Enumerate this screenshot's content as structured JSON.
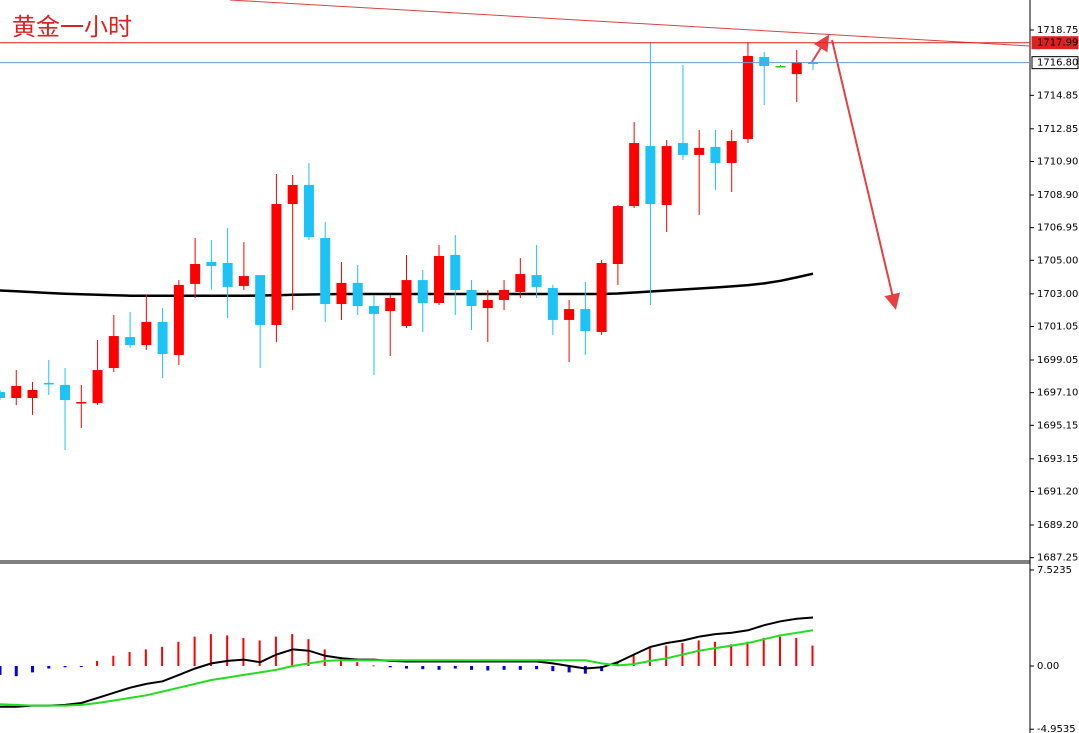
{
  "chart_data": [
    {
      "type": "candlestick",
      "title": "黄金一小时",
      "open": [
        1697.14,
        1696.78,
        1696.78,
        1697.68,
        1697.56,
        1696.48,
        1696.48,
        1698.57,
        1700.42,
        1699.94,
        1701.32,
        1699.35,
        1703.59,
        1704.9,
        1704.84,
        1703.47,
        1704.12,
        1701.14,
        1708.36,
        1709.5,
        1706.33,
        1702.39,
        1703.65,
        1702.27,
        1701.97,
        1701.08,
        1703.82,
        1702.45,
        1705.32,
        1703.23,
        1702.15,
        1702.63,
        1703.11,
        1704.12,
        1703.35,
        1701.44,
        1702.09,
        1700.72,
        1704.78,
        1708.24,
        1711.82,
        1708.3,
        1712.0,
        1711.29,
        1711.77,
        1710.81,
        1712.24,
        1717.14,
        1716.6,
        1716.12,
        1716.84
      ],
      "high": [
        1697.26,
        1698.45,
        1697.74,
        1699.05,
        1698.57,
        1697.56,
        1700.24,
        1701.74,
        1701.91,
        1702.93,
        1702.15,
        1703.82,
        1706.33,
        1706.21,
        1706.93,
        1706.09,
        1704.12,
        1710.15,
        1710.09,
        1710.81,
        1707.29,
        1704.9,
        1704.72,
        1702.93,
        1702.93,
        1705.32,
        1704.42,
        1705.91,
        1706.51,
        1703.82,
        1703.23,
        1703.82,
        1705.14,
        1705.91,
        1703.53,
        1702.63,
        1703.71,
        1705.02,
        1708.3,
        1713.26,
        1718.03,
        1712.18,
        1716.66,
        1712.78,
        1712.78,
        1712.78,
        1718.03,
        1717.44,
        1716.66,
        1717.56,
        1717.08
      ],
      "low": [
        1696.66,
        1696.36,
        1695.77,
        1696.96,
        1693.68,
        1694.99,
        1696.36,
        1698.33,
        1699.77,
        1699.65,
        1697.97,
        1698.75,
        1702.75,
        1703.23,
        1701.56,
        1703.23,
        1698.57,
        1700.12,
        1702.03,
        1706.21,
        1701.32,
        1701.44,
        1701.74,
        1698.15,
        1699.29,
        1700.96,
        1700.72,
        1702.33,
        1701.74,
        1700.84,
        1700.12,
        1702.03,
        1702.75,
        1702.75,
        1700.54,
        1698.93,
        1699.35,
        1700.54,
        1703.53,
        1708.12,
        1702.33,
        1706.69,
        1710.99,
        1707.71,
        1709.2,
        1709.08,
        1712.0,
        1714.27,
        1716.54,
        1714.45,
        1716.36
      ],
      "close": [
        1696.78,
        1697.5,
        1697.26,
        1697.62,
        1696.66,
        1696.54,
        1698.45,
        1700.48,
        1699.94,
        1701.32,
        1699.41,
        1703.53,
        1704.78,
        1704.66,
        1703.41,
        1704.06,
        1701.14,
        1708.36,
        1709.5,
        1706.39,
        1702.39,
        1703.65,
        1702.27,
        1701.8,
        1702.75,
        1703.82,
        1702.45,
        1705.26,
        1703.23,
        1702.27,
        1702.63,
        1703.23,
        1704.18,
        1703.41,
        1701.44,
        1702.09,
        1700.78,
        1704.84,
        1708.24,
        1712.0,
        1708.36,
        1711.82,
        1711.29,
        1711.71,
        1710.81,
        1712.12,
        1717.2,
        1716.6,
        1716.6,
        1716.84,
        1716.72
      ],
      "up_color": "#ff0000",
      "down_color": "#1ec3f5",
      "doji_color": "#22cc22",
      "ma": {
        "color": "#000000",
        "values": [
          1703.2,
          1703.15,
          1703.1,
          1703.05,
          1703.0,
          1702.97,
          1702.94,
          1702.91,
          1702.89,
          1702.89,
          1702.89,
          1702.89,
          1702.89,
          1702.89,
          1702.89,
          1702.89,
          1702.9,
          1702.92,
          1702.94,
          1702.96,
          1702.98,
          1702.99,
          1702.99,
          1702.99,
          1702.99,
          1702.99,
          1702.99,
          1702.99,
          1702.99,
          1702.99,
          1702.99,
          1702.99,
          1702.99,
          1702.99,
          1702.99,
          1702.99,
          1702.99,
          1702.99,
          1703.02,
          1703.08,
          1703.14,
          1703.2,
          1703.26,
          1703.32,
          1703.38,
          1703.44,
          1703.52,
          1703.62,
          1703.78,
          1703.98,
          1704.2
        ]
      },
      "ylim": [
        1687.11,
        1720.54
      ],
      "yticks": [
        {
          "value": 1718.75,
          "label": "1718.75"
        },
        {
          "value": 1714.85,
          "label": "1714.85"
        },
        {
          "value": 1712.85,
          "label": "1712.85"
        },
        {
          "value": 1710.9,
          "label": "1710.90"
        },
        {
          "value": 1708.9,
          "label": "1708.90"
        },
        {
          "value": 1706.95,
          "label": "1706.95"
        },
        {
          "value": 1705,
          "label": "1705.00"
        },
        {
          "value": 1703,
          "label": "1703.00"
        },
        {
          "value": 1701.05,
          "label": "1701.05"
        },
        {
          "value": 1699.05,
          "label": "1699.05"
        },
        {
          "value": 1697.1,
          "label": "1697.10"
        },
        {
          "value": 1695.15,
          "label": "1695.15"
        },
        {
          "value": 1693.15,
          "label": "1693.15"
        },
        {
          "value": 1691.2,
          "label": "1691.20"
        },
        {
          "value": 1689.2,
          "label": "1689.20"
        },
        {
          "value": 1687.25,
          "label": "1687.25"
        }
      ],
      "price_lines": [
        {
          "value": 1717.99,
          "label": "1717.99",
          "color": "#e02020"
        },
        {
          "value": 1716.8,
          "label": "1716.80",
          "color": "#6a9ad0"
        }
      ]
    },
    {
      "type": "macd",
      "histogram": {
        "up_color": "#ff0000",
        "down_color": "#0000ff",
        "values": [
          -0.7,
          -0.8,
          -0.5,
          -0.2,
          -0.1,
          -0.05,
          0.4,
          0.8,
          1.1,
          1.3,
          1.5,
          1.9,
          2.3,
          2.5,
          2.4,
          2.2,
          2.0,
          2.3,
          2.5,
          2.1,
          1.3,
          0.7,
          0.3,
          0.05,
          -0.1,
          -0.2,
          -0.25,
          -0.3,
          -0.2,
          -0.3,
          -0.35,
          -0.3,
          -0.3,
          -0.25,
          -0.4,
          -0.5,
          -0.6,
          -0.4,
          0.3,
          0.9,
          1.4,
          1.6,
          1.8,
          2.0,
          1.9,
          1.7,
          1.9,
          2.2,
          2.3,
          2.2,
          1.6
        ]
      },
      "series": [
        {
          "color": "#000000",
          "values": [
            -3.2,
            -3.2,
            -3.1,
            -3.1,
            -3.05,
            -2.9,
            -2.5,
            -2.1,
            -1.7,
            -1.4,
            -1.2,
            -0.7,
            -0.2,
            0.2,
            0.4,
            0.5,
            0.3,
            0.9,
            1.3,
            1.2,
            0.8,
            0.6,
            0.5,
            0.5,
            0.4,
            0.35,
            0.35,
            0.35,
            0.35,
            0.35,
            0.35,
            0.35,
            0.35,
            0.35,
            0.2,
            0.0,
            -0.2,
            -0.1,
            0.3,
            0.9,
            1.5,
            1.8,
            2.0,
            2.3,
            2.5,
            2.6,
            2.8,
            3.2,
            3.5,
            3.7,
            3.8
          ]
        },
        {
          "color": "#22dd22",
          "values": [
            -3.0,
            -3.05,
            -3.1,
            -3.1,
            -3.1,
            -3.05,
            -2.9,
            -2.7,
            -2.5,
            -2.3,
            -2.0,
            -1.7,
            -1.4,
            -1.1,
            -0.9,
            -0.7,
            -0.5,
            -0.3,
            0.0,
            0.2,
            0.4,
            0.45,
            0.45,
            0.45,
            0.45,
            0.45,
            0.45,
            0.45,
            0.45,
            0.45,
            0.45,
            0.45,
            0.45,
            0.45,
            0.45,
            0.45,
            0.45,
            0.2,
            0.05,
            0.15,
            0.4,
            0.6,
            0.9,
            1.2,
            1.4,
            1.6,
            1.8,
            2.1,
            2.4,
            2.6,
            2.8
          ]
        }
      ],
      "ylim": [
        -5.25,
        8.07
      ],
      "yticks": [
        7.5235,
        {
          "value": 0,
          "label": "0.00"
        },
        -4.9535
      ]
    }
  ]
}
